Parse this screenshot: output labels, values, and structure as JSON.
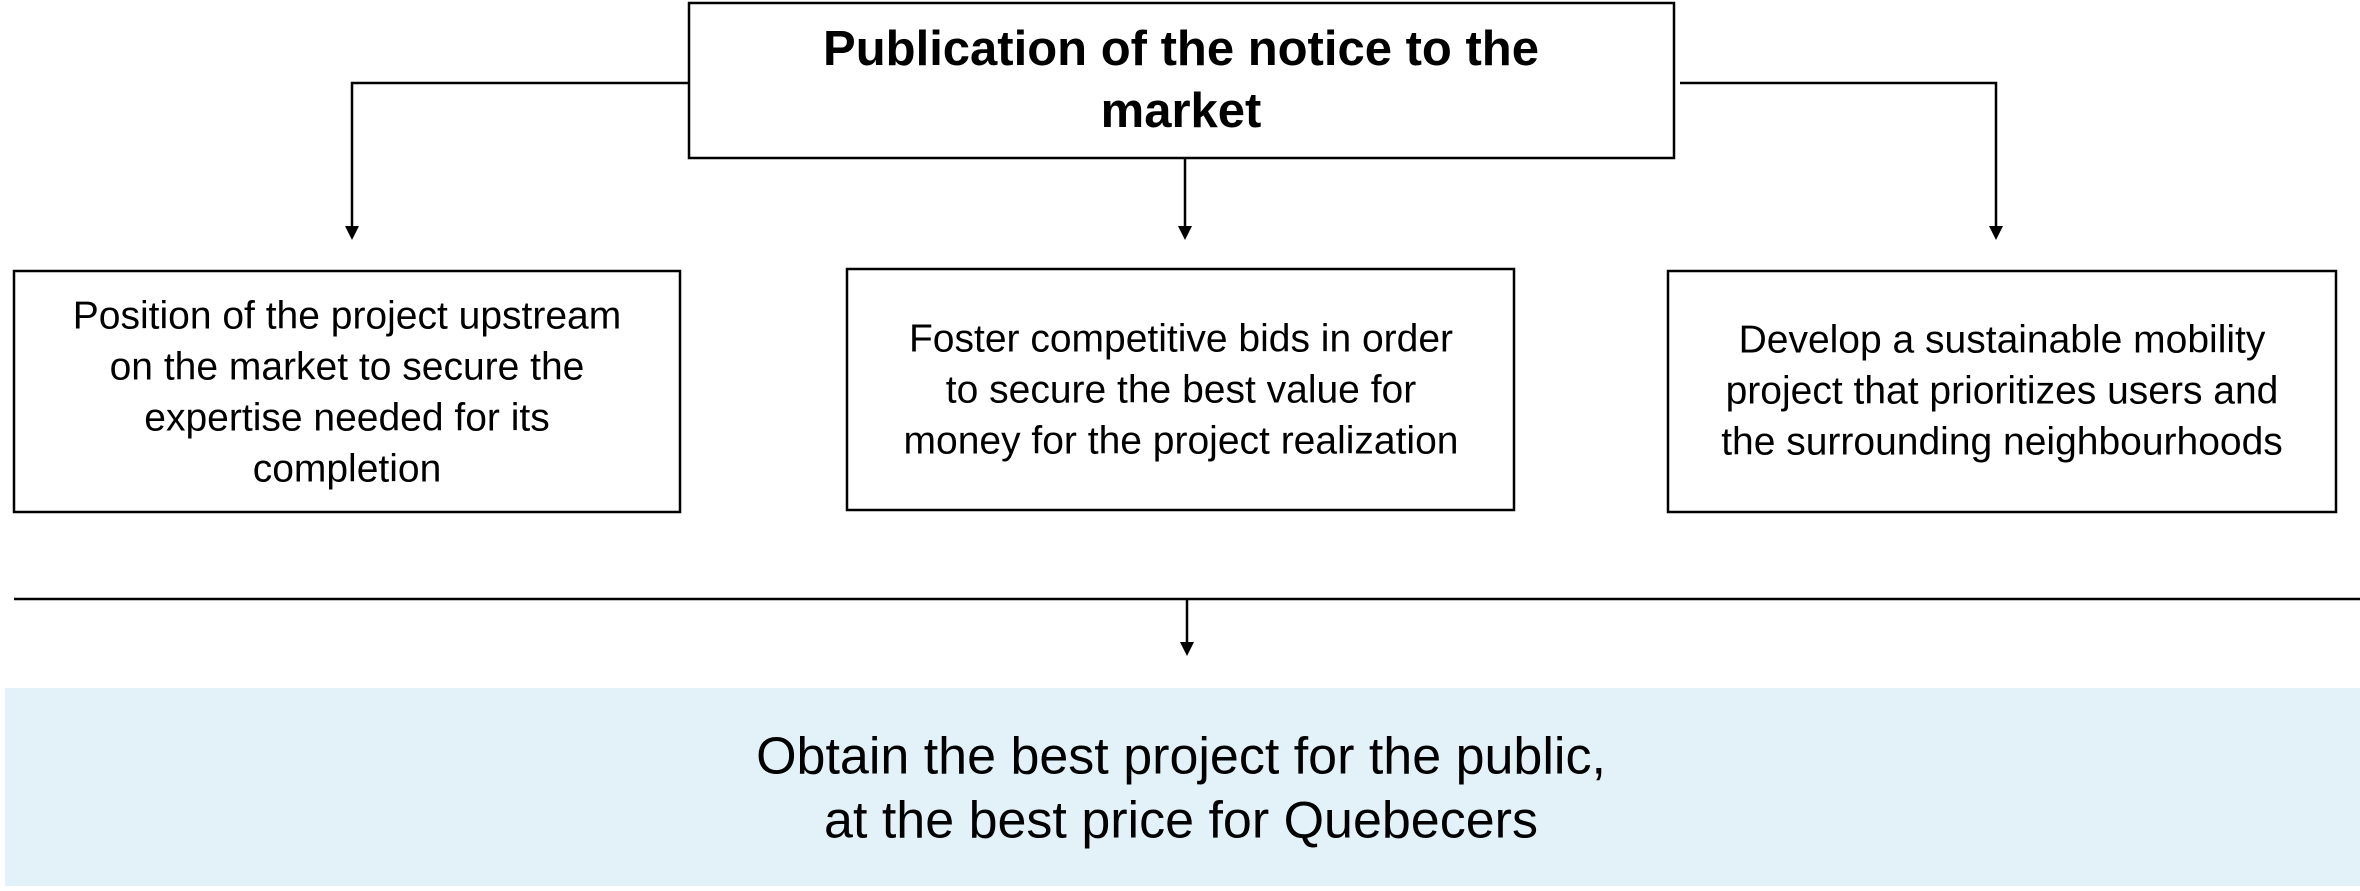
{
  "top_node": {
    "lines": [
      "Publication of the notice to the",
      "market"
    ]
  },
  "nodes": [
    {
      "lines": [
        "Position of the project upstream",
        "on the market to secure the",
        "expertise needed for its",
        "completion"
      ]
    },
    {
      "lines": [
        "Foster competitive bids in order",
        "to secure the best value for",
        "money for the project realization"
      ]
    },
    {
      "lines": [
        "Develop a sustainable mobility",
        "project that prioritizes users and",
        "the surrounding neighbourhoods"
      ]
    }
  ],
  "outcome": {
    "lines": [
      "Obtain the best project for the public,",
      "at the best price for Quebecers"
    ]
  }
}
